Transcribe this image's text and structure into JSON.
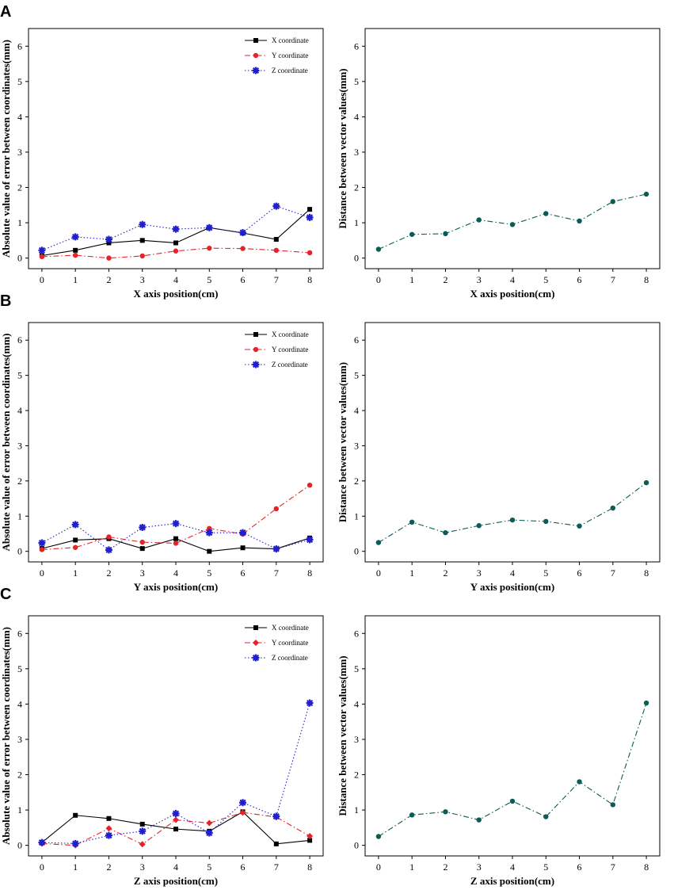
{
  "chart_data": [
    {
      "type": "line",
      "panel": "A",
      "xlabel": "X axis position(cm)",
      "ylabel": "Absolute value of error between coordinates(mm)",
      "xlim": [
        -0.4,
        8.4
      ],
      "ylim": [
        -0.3,
        6.5
      ],
      "x": [
        0,
        1,
        2,
        3,
        4,
        5,
        6,
        7,
        8
      ],
      "xticks": [
        0,
        1,
        2,
        3,
        4,
        5,
        6,
        7,
        8
      ],
      "yticks": [
        0,
        1,
        2,
        3,
        4,
        5,
        6
      ],
      "legend": "top-right",
      "series": [
        {
          "name": "X coordinate",
          "color": "#000000",
          "marker": "square",
          "dash": "solid",
          "values": [
            0.07,
            0.22,
            0.43,
            0.5,
            0.43,
            0.86,
            0.71,
            0.53,
            1.38
          ]
        },
        {
          "name": "Y coordinate",
          "color": "#e8222a",
          "marker": "circle",
          "dash": "dashdot",
          "values": [
            0.04,
            0.08,
            0.0,
            0.06,
            0.2,
            0.28,
            0.27,
            0.22,
            0.15
          ]
        },
        {
          "name": "Z coordinate",
          "color": "#1f1fd0",
          "marker": "star",
          "dash": "dotted",
          "values": [
            0.22,
            0.6,
            0.53,
            0.95,
            0.82,
            0.86,
            0.72,
            1.47,
            1.15
          ]
        }
      ]
    },
    {
      "type": "line",
      "panel": "",
      "xlabel": "X axis position(cm)",
      "ylabel": "Distance between vector values(mm)",
      "xlim": [
        -0.4,
        8.4
      ],
      "ylim": [
        -0.3,
        6.5
      ],
      "x": [
        0,
        1,
        2,
        3,
        4,
        5,
        6,
        7,
        8
      ],
      "xticks": [
        0,
        1,
        2,
        3,
        4,
        5,
        6,
        7,
        8
      ],
      "yticks": [
        0,
        1,
        2,
        3,
        4,
        5,
        6
      ],
      "series": [
        {
          "name": "Distance",
          "color": "#0d5b55",
          "marker": "circle",
          "dash": "dashdot",
          "values": [
            0.25,
            0.67,
            0.69,
            1.08,
            0.95,
            1.26,
            1.05,
            1.6,
            1.81
          ]
        }
      ]
    },
    {
      "type": "line",
      "panel": "B",
      "xlabel": "Y axis position(cm)",
      "ylabel": "Absolute value of error between coordinates(mm)",
      "xlim": [
        -0.4,
        8.4
      ],
      "ylim": [
        -0.3,
        6.5
      ],
      "x": [
        0,
        1,
        2,
        3,
        4,
        5,
        6,
        7,
        8
      ],
      "xticks": [
        0,
        1,
        2,
        3,
        4,
        5,
        6,
        7,
        8
      ],
      "yticks": [
        0,
        1,
        2,
        3,
        4,
        5,
        6
      ],
      "legend": "top-right",
      "series": [
        {
          "name": "X coordinate",
          "color": "#000000",
          "marker": "square",
          "dash": "solid",
          "values": [
            0.08,
            0.32,
            0.36,
            0.08,
            0.36,
            0.0,
            0.1,
            0.07,
            0.38
          ]
        },
        {
          "name": "Y coordinate",
          "color": "#e8222a",
          "marker": "circle",
          "dash": "dashdot",
          "values": [
            0.05,
            0.11,
            0.41,
            0.26,
            0.23,
            0.65,
            0.49,
            1.21,
            1.88
          ]
        },
        {
          "name": "Z coordinate",
          "color": "#1f1fd0",
          "marker": "star",
          "dash": "dotted",
          "values": [
            0.24,
            0.76,
            0.04,
            0.68,
            0.79,
            0.53,
            0.53,
            0.07,
            0.33
          ]
        }
      ]
    },
    {
      "type": "line",
      "panel": "",
      "xlabel": "Y axis position(cm)",
      "ylabel": "Distance between vector values(mm)",
      "xlim": [
        -0.4,
        8.4
      ],
      "ylim": [
        -0.3,
        6.5
      ],
      "x": [
        0,
        1,
        2,
        3,
        4,
        5,
        6,
        7,
        8
      ],
      "xticks": [
        0,
        1,
        2,
        3,
        4,
        5,
        6,
        7,
        8
      ],
      "yticks": [
        0,
        1,
        2,
        3,
        4,
        5,
        6
      ],
      "series": [
        {
          "name": "Distance",
          "color": "#0d5b55",
          "marker": "circle",
          "dash": "dashdot",
          "values": [
            0.25,
            0.83,
            0.53,
            0.73,
            0.89,
            0.85,
            0.72,
            1.23,
            1.95
          ]
        }
      ]
    },
    {
      "type": "line",
      "panel": "C",
      "xlabel": "Z axis position(cm)",
      "ylabel": "Absolute value of error between coordinates(mm)",
      "xlim": [
        -0.4,
        8.4
      ],
      "ylim": [
        -0.3,
        6.5
      ],
      "x": [
        0,
        1,
        2,
        3,
        4,
        5,
        6,
        7,
        8
      ],
      "xticks": [
        0,
        1,
        2,
        3,
        4,
        5,
        6,
        7,
        8
      ],
      "yticks": [
        0,
        1,
        2,
        3,
        4,
        5,
        6
      ],
      "legend": "top-right",
      "series": [
        {
          "name": "X coordinate",
          "color": "#000000",
          "marker": "square",
          "dash": "solid",
          "values": [
            0.08,
            0.85,
            0.76,
            0.6,
            0.46,
            0.4,
            0.95,
            0.04,
            0.14
          ]
        },
        {
          "name": "Y coordinate",
          "color": "#e8222a",
          "marker": "diamond",
          "dash": "dashdot",
          "values": [
            0.05,
            0.0,
            0.48,
            0.03,
            0.72,
            0.63,
            0.93,
            0.8,
            0.26
          ]
        },
        {
          "name": "Z coordinate",
          "color": "#1f1fd0",
          "marker": "star",
          "dash": "dotted",
          "values": [
            0.08,
            0.05,
            0.28,
            0.4,
            0.9,
            0.35,
            1.21,
            0.82,
            4.03
          ]
        }
      ]
    },
    {
      "type": "line",
      "panel": "",
      "xlabel": "Z axis position(cm)",
      "ylabel": "Distance between vector values(mm)",
      "xlim": [
        -0.4,
        8.4
      ],
      "ylim": [
        -0.3,
        6.5
      ],
      "x": [
        0,
        1,
        2,
        3,
        4,
        5,
        6,
        7,
        8
      ],
      "xticks": [
        0,
        1,
        2,
        3,
        4,
        5,
        6,
        7,
        8
      ],
      "yticks": [
        0,
        1,
        2,
        3,
        4,
        5,
        6
      ],
      "series": [
        {
          "name": "Distance",
          "color": "#0d5b55",
          "marker": "circle",
          "dash": "dashdot",
          "values": [
            0.25,
            0.86,
            0.95,
            0.72,
            1.25,
            0.81,
            1.8,
            1.15,
            4.03
          ]
        }
      ]
    }
  ]
}
